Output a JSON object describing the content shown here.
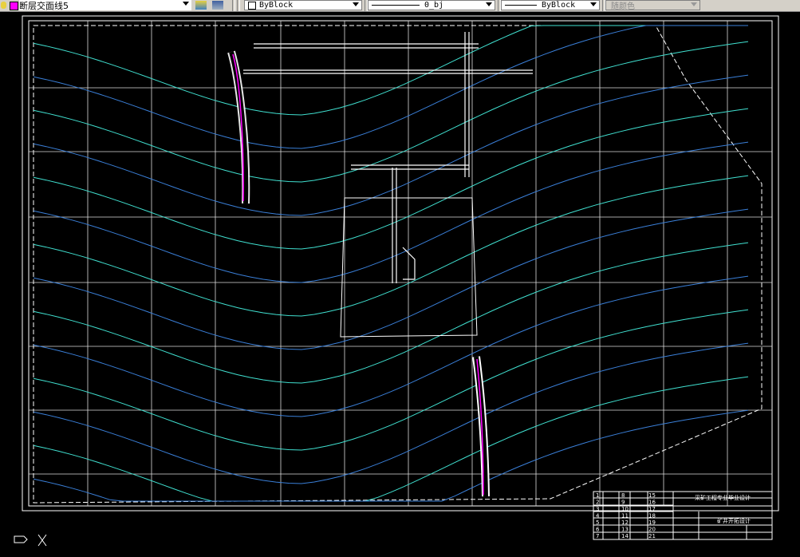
{
  "toolbar": {
    "layer": {
      "name": "断层交面线5",
      "color": "#ff00ff"
    },
    "color_combo": "ByBlock",
    "linetype_combo": "0_bj",
    "lineweight_combo": "ByBlock",
    "plotstyle_combo": "随颜色"
  },
  "icons": [
    "lightbulb-icon",
    "layer-previous-icon",
    "layer-manager-icon",
    "ucs-icon"
  ],
  "colors": {
    "background": "#000000",
    "contour_light": "#40e0d0",
    "contour_dark": "#3a7fd8",
    "grid": "#ffffff",
    "fault": "#ff00ff"
  },
  "title_block": {
    "line1": "采矿工程专业毕业设计",
    "line2": "矿井开拓设计",
    "row_numbers": [
      "1",
      "2",
      "3",
      "4",
      "5",
      "6",
      "7",
      "8",
      "9",
      "10",
      "11",
      "12",
      "13",
      "14",
      "15",
      "16",
      "17",
      "18",
      "19",
      "20",
      "21"
    ]
  }
}
